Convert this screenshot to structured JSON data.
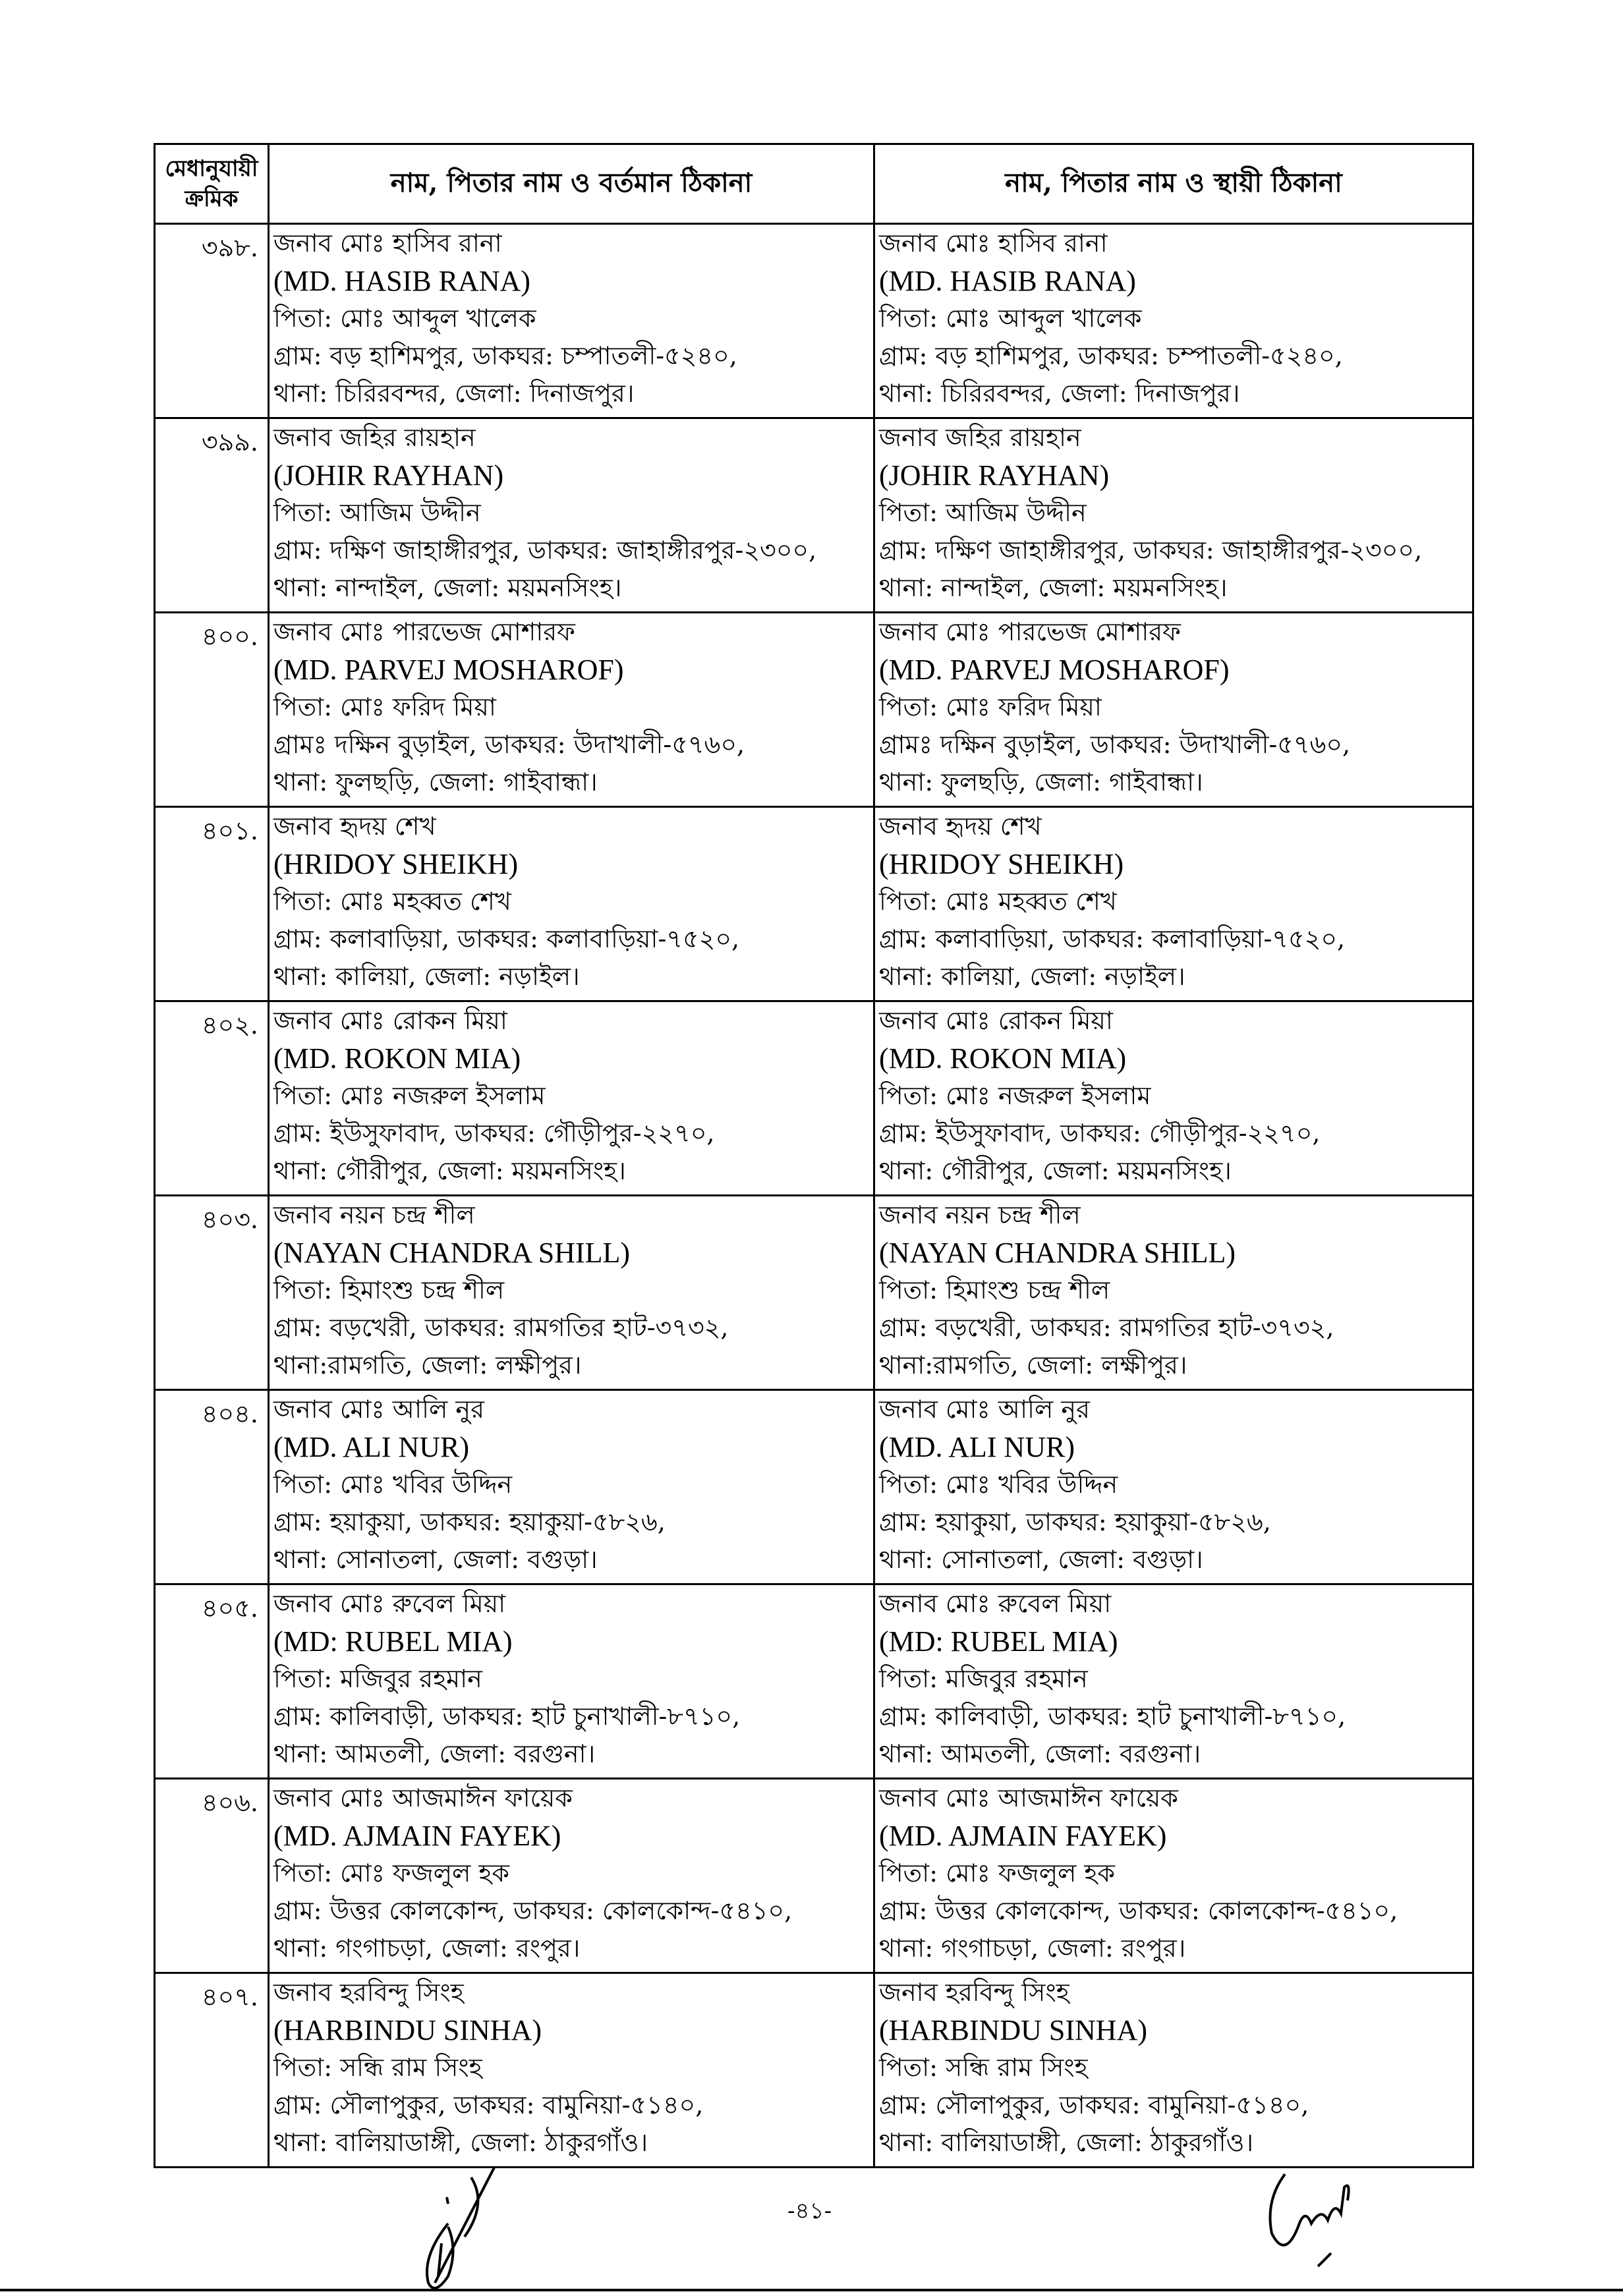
{
  "table": {
    "headers": [
      "মেধানুযায়ী ক্রমিক",
      "নাম, পিতার নাম ও বর্তমান ঠিকানা",
      "নাম, পিতার নাম ও স্থায়ী ঠিকানা"
    ],
    "rows": [
      {
        "serial": "৩৯৮.",
        "name_bn": "জনাব মোঃ হাসিব রানা",
        "name_en": "(MD. HASIB RANA)",
        "father": "পিতা: মোঃ আব্দুল খালেক",
        "village": "গ্রাম: বড় হাশিমপুর, ডাকঘর: চম্পাতলী-৫২৪০,",
        "thana": "থানা: চিরিরবন্দর, জেলা: দিনাজপুর।"
      },
      {
        "serial": "৩৯৯.",
        "name_bn": "জনাব জহির রায়হান",
        "name_en": "(JOHIR RAYHAN)",
        "father": "পিতা: আজিম উদ্দীন",
        "village": "গ্রাম: দক্ষিণ জাহাঙ্গীরপুর, ডাকঘর: জাহাঙ্গীরপুর-২৩০০,",
        "thana": "থানা: নান্দাইল, জেলা: ময়মনসিংহ।"
      },
      {
        "serial": "৪০০.",
        "name_bn": "জনাব মোঃ পারভেজ মোশারফ",
        "name_en": "(MD. PARVEJ MOSHAROF)",
        "father": "পিতা: মোঃ ফরিদ মিয়া",
        "village": "গ্রামঃ দক্ষিন বুড়াইল, ডাকঘর: উদাখালী-৫৭৬০,",
        "thana": "থানা: ফুলছড়ি, জেলা: গাইবান্ধা।"
      },
      {
        "serial": "৪০১.",
        "name_bn": "জনাব হৃদয় শেখ",
        "name_en": "(HRIDOY SHEIKH)",
        "father": "পিতা: মোঃ মহব্বত শেখ",
        "village": "গ্রাম: কলাবাড়িয়া, ডাকঘর: কলাবাড়িয়া-৭৫২০,",
        "thana": "থানা: কালিয়া, জেলা: নড়াইল।"
      },
      {
        "serial": "৪০২.",
        "name_bn": "জনাব মোঃ রোকন মিয়া",
        "name_en": "(MD. ROKON MIA)",
        "father": "পিতা: মোঃ নজরুল ইসলাম",
        "village": "গ্রাম: ইউসুফাবাদ, ডাকঘর: গৌড়ীপুর-২২৭০,",
        "thana": "থানা: গৌরীপুর, জেলা: ময়মনসিংহ।"
      },
      {
        "serial": "৪০৩.",
        "name_bn": "জনাব নয়ন চন্দ্র শীল",
        "name_en": "(NAYAN CHANDRA SHILL)",
        "father": "পিতা: হিমাংশু চন্দ্র শীল",
        "village": "গ্রাম: বড়খেরী, ডাকঘর: রামগতির হাট-৩৭৩২,",
        "thana": "থানা:রামগতি, জেলা: লক্ষীপুর।"
      },
      {
        "serial": "৪০৪.",
        "name_bn": "জনাব মোঃ আলি নুর",
        "name_en": "(MD. ALI NUR)",
        "father": "পিতা: মোঃ খবির উদ্দিন",
        "village": "গ্রাম: হয়াকুয়া, ডাকঘর: হয়াকুয়া-৫৮২৬,",
        "thana": "থানা: সোনাতলা, জেলা: বগুড়া।"
      },
      {
        "serial": "৪০৫.",
        "name_bn": "জনাব মোঃ রুবেল মিয়া",
        "name_en": "(MD: RUBEL MIA)",
        "father": "পিতা: মজিবুর রহমান",
        "village": "গ্রাম: কালিবাড়ী, ডাকঘর: হাট চুনাখালী-৮৭১০,",
        "thana": "থানা: আমতলী, জেলা: বরগুনা।"
      },
      {
        "serial": "৪০৬.",
        "name_bn": "জনাব মোঃ আজমাঈন ফায়েক",
        "name_en": "(MD. AJMAIN FAYEK)",
        "father": "পিতা: মোঃ ফজলুল হক",
        "village": "গ্রাম: উত্তর কোলকোন্দ, ডাকঘর: কোলকোন্দ-৫৪১০,",
        "thana": "থানা: গংগাচড়া, জেলা: রংপুর।"
      },
      {
        "serial": "৪০৭.",
        "name_bn": "জনাব হরবিন্দু সিংহ",
        "name_en": "(HARBINDU SINHA)",
        "father": "পিতা: সন্ধি রাম সিংহ",
        "village": "গ্রাম: সৌলাপুকুর, ডাকঘর: বামুনিয়া-৫১৪০,",
        "thana": "থানা: বালিয়াডাঙ্গী, জেলা: ঠাকুরগাঁও।"
      }
    ]
  },
  "footer": {
    "page_number": "-৪১-"
  }
}
